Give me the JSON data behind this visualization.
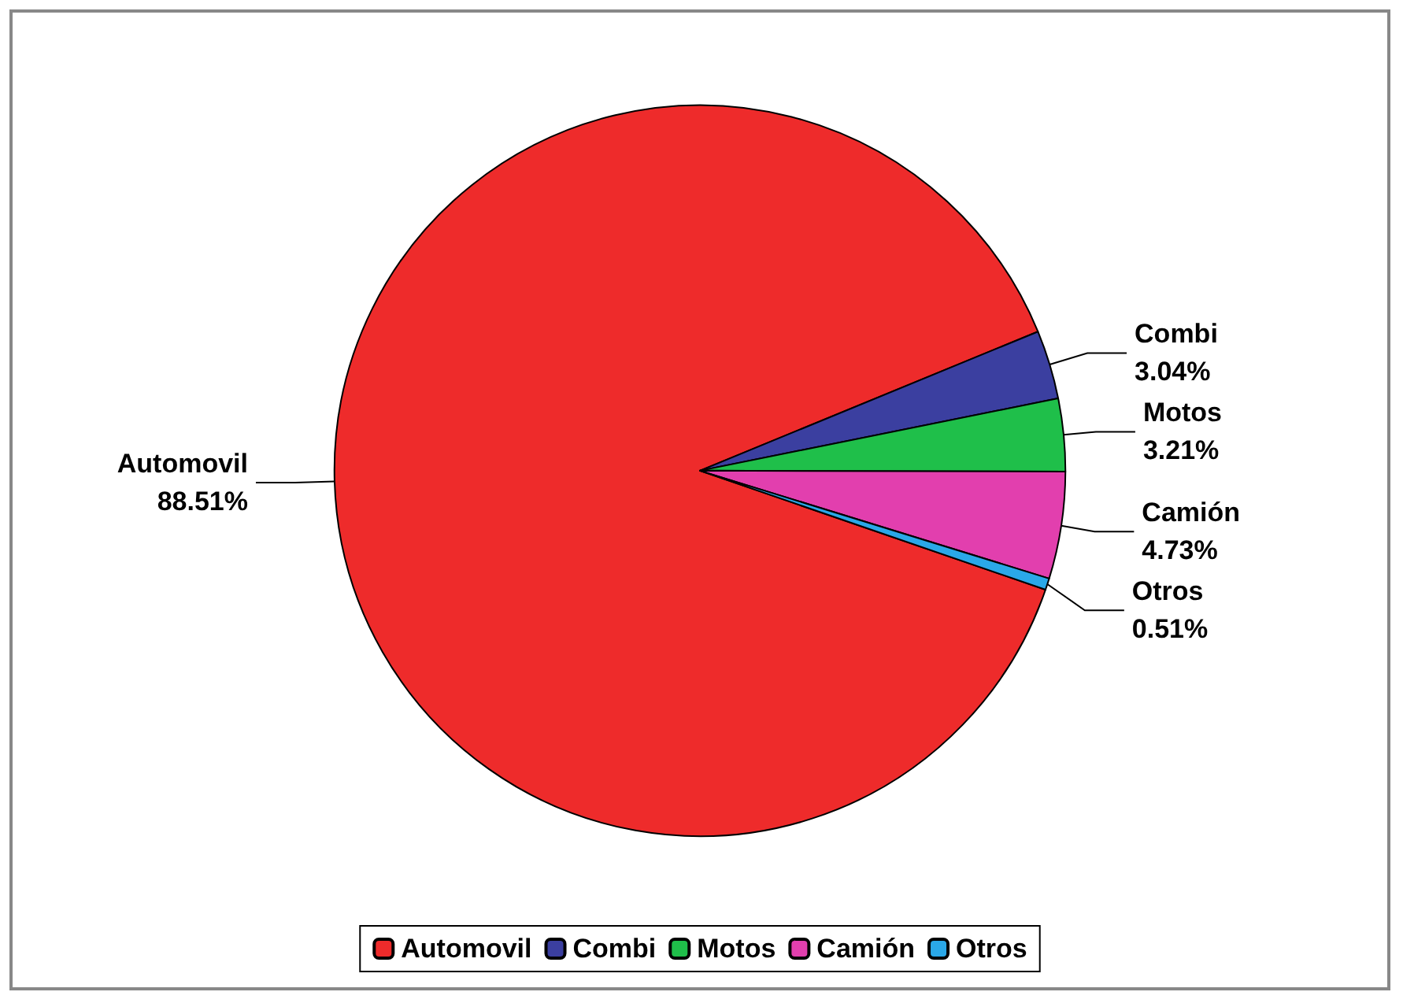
{
  "chart_data": {
    "type": "pie",
    "categories": [
      "Automovil",
      "Combi",
      "Motos",
      "Camión",
      "Otros"
    ],
    "values": [
      88.51,
      3.04,
      3.21,
      4.73,
      0.51
    ],
    "colors": [
      "#ee2b2b",
      "#3b3fa0",
      "#1fbf4a",
      "#e23fae",
      "#2aa8e8"
    ],
    "value_labels": [
      "88.51%",
      "3.04%",
      "3.21%",
      "4.73%",
      "0.51%"
    ],
    "legend": "bottom"
  }
}
